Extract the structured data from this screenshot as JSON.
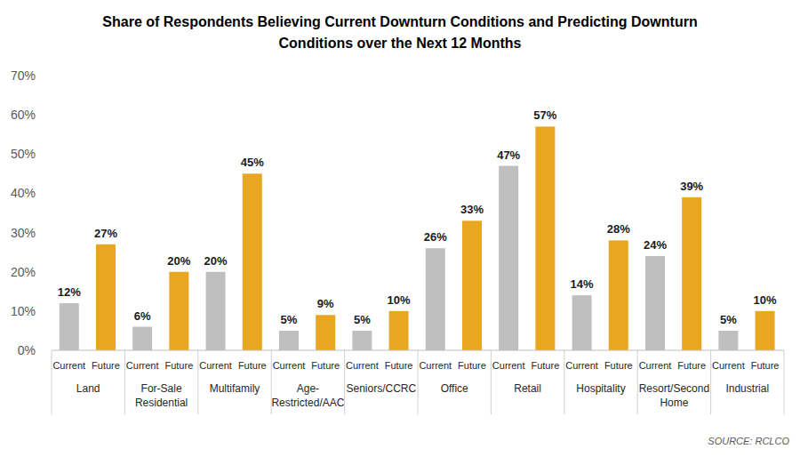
{
  "chart_data": {
    "type": "bar",
    "title": "Share of Respondents Believing Current Downturn Conditions and Predicting Downturn Conditions over the Next 12 Months",
    "source": "SOURCE: RCLCO",
    "categories": [
      "Land",
      "For-Sale Residential",
      "Multifamily",
      "Age-Restricted/AAC",
      "Seniors/CCRC",
      "Office",
      "Retail",
      "Hospitality",
      "Resort/Second Home",
      "Industrial"
    ],
    "series": [
      {
        "name": "Current",
        "color": "#BFBFBF",
        "values": [
          12,
          6,
          20,
          5,
          5,
          26,
          47,
          14,
          24,
          5
        ],
        "value_labels": [
          "12%",
          "6%",
          "20%",
          "5%",
          "5%",
          "26%",
          "47%",
          "14%",
          "24%",
          "5%"
        ]
      },
      {
        "name": "Future",
        "color": "#E9A621",
        "values": [
          27,
          20,
          45,
          9,
          10,
          33,
          57,
          28,
          39,
          10
        ],
        "value_labels": [
          "27%",
          "20%",
          "45%",
          "9%",
          "10%",
          "33%",
          "57%",
          "28%",
          "39%",
          "10%"
        ]
      }
    ],
    "ylim": [
      0,
      70
    ],
    "yticks": [
      {
        "value": 0,
        "label": "0%"
      },
      {
        "value": 10,
        "label": "10%"
      },
      {
        "value": 20,
        "label": "20%"
      },
      {
        "value": 30,
        "label": "30%"
      },
      {
        "value": 40,
        "label": "40%"
      },
      {
        "value": 50,
        "label": "50%"
      },
      {
        "value": 60,
        "label": "60%"
      },
      {
        "value": 70,
        "label": "70%"
      }
    ],
    "grid": false,
    "data_labels": true
  }
}
